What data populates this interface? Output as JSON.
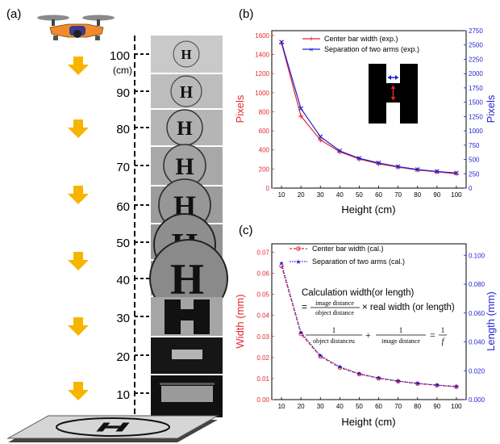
{
  "panel_labels": {
    "a": "(a)",
    "b": "(b)",
    "c": "(c)"
  },
  "panel_a": {
    "height_labels": [
      "100",
      "90",
      "80",
      "70",
      "60",
      "50",
      "40",
      "30",
      "20",
      "10"
    ],
    "unit_label": "(cm)",
    "pad_letter": "H",
    "colors": {
      "arrow": "#f7b500",
      "drone": "#f08a2a",
      "pad": "#cfcfcf"
    },
    "icons": [
      "drone-icon",
      "down-arrow-icon",
      "landing-pad-icon"
    ]
  },
  "equations": {
    "line1": "Calculation width(or length)",
    "eq_prefix": "=",
    "frac1_num": "image distance",
    "frac1_den": "object distance",
    "times_text": "× real width (or length)",
    "f2_num": "1",
    "f2_den": "object distanceu",
    "plus": "+",
    "f3_num": "1",
    "f3_den": "image distance",
    "eq2": "=",
    "f4_num": "1",
    "f4_den": "f"
  },
  "chart_data": [
    {
      "type": "line",
      "panel": "b",
      "xlabel": "Height (cm)",
      "ylabel_left": "Pixels",
      "ylabel_right": "Pixels",
      "x": [
        10,
        20,
        30,
        40,
        50,
        60,
        70,
        80,
        90,
        100
      ],
      "xlim": [
        5,
        105
      ],
      "xticks": [
        10,
        20,
        30,
        40,
        50,
        60,
        70,
        80,
        90,
        100
      ],
      "ylim_left": [
        0,
        1650
      ],
      "yticks_left": [
        0,
        200,
        400,
        600,
        800,
        1000,
        1200,
        1400,
        1600
      ],
      "ylim_right": [
        0,
        2750
      ],
      "yticks_right": [
        0,
        250,
        500,
        750,
        1000,
        1250,
        1500,
        1750,
        2000,
        2250,
        2500,
        2750
      ],
      "legend_position": "top-right",
      "series": [
        {
          "name": "Center bar width (exp.)",
          "axis": "left",
          "color": "#e8262a",
          "values": [
            1520,
            755,
            505,
            380,
            305,
            255,
            220,
            190,
            170,
            150
          ]
        },
        {
          "name": "Separation of two arms (exp.)",
          "axis": "right",
          "color": "#1f1fd6",
          "values": [
            2550,
            1390,
            900,
            650,
            520,
            440,
            375,
            325,
            290,
            265
          ]
        }
      ]
    },
    {
      "type": "line",
      "panel": "c",
      "xlabel": "Height (cm)",
      "ylabel_left": "Width (mm)",
      "ylabel_right": "Length (mm)",
      "x": [
        10,
        20,
        30,
        40,
        50,
        60,
        70,
        80,
        90,
        100
      ],
      "xlim": [
        5,
        105
      ],
      "xticks": [
        10,
        20,
        30,
        40,
        50,
        60,
        70,
        80,
        90,
        100
      ],
      "ylim_left": [
        0,
        0.074
      ],
      "yticks_left": [
        "0.00",
        "0.01",
        "0.02",
        "0.03",
        "0.04",
        "0.05",
        "0.06",
        "0.07"
      ],
      "ylim_right": [
        0,
        0.108
      ],
      "yticks_right": [
        "0.000",
        "0.020",
        "0.040",
        "0.060",
        "0.080",
        "0.100"
      ],
      "legend_position": "top-right",
      "series": [
        {
          "name": "Center bar width (cal.)",
          "axis": "left",
          "color": "#e8262a",
          "values": [
            0.0635,
            0.0312,
            0.0205,
            0.0152,
            0.0121,
            0.0101,
            0.0087,
            0.0076,
            0.0068,
            0.0061
          ]
        },
        {
          "name": "Separation of two arms (cal.)",
          "axis": "right",
          "color": "#1f1fd6",
          "values": [
            0.0945,
            0.0465,
            0.0305,
            0.0227,
            0.018,
            0.015,
            0.0129,
            0.0113,
            0.0101,
            0.0091
          ]
        }
      ]
    }
  ]
}
